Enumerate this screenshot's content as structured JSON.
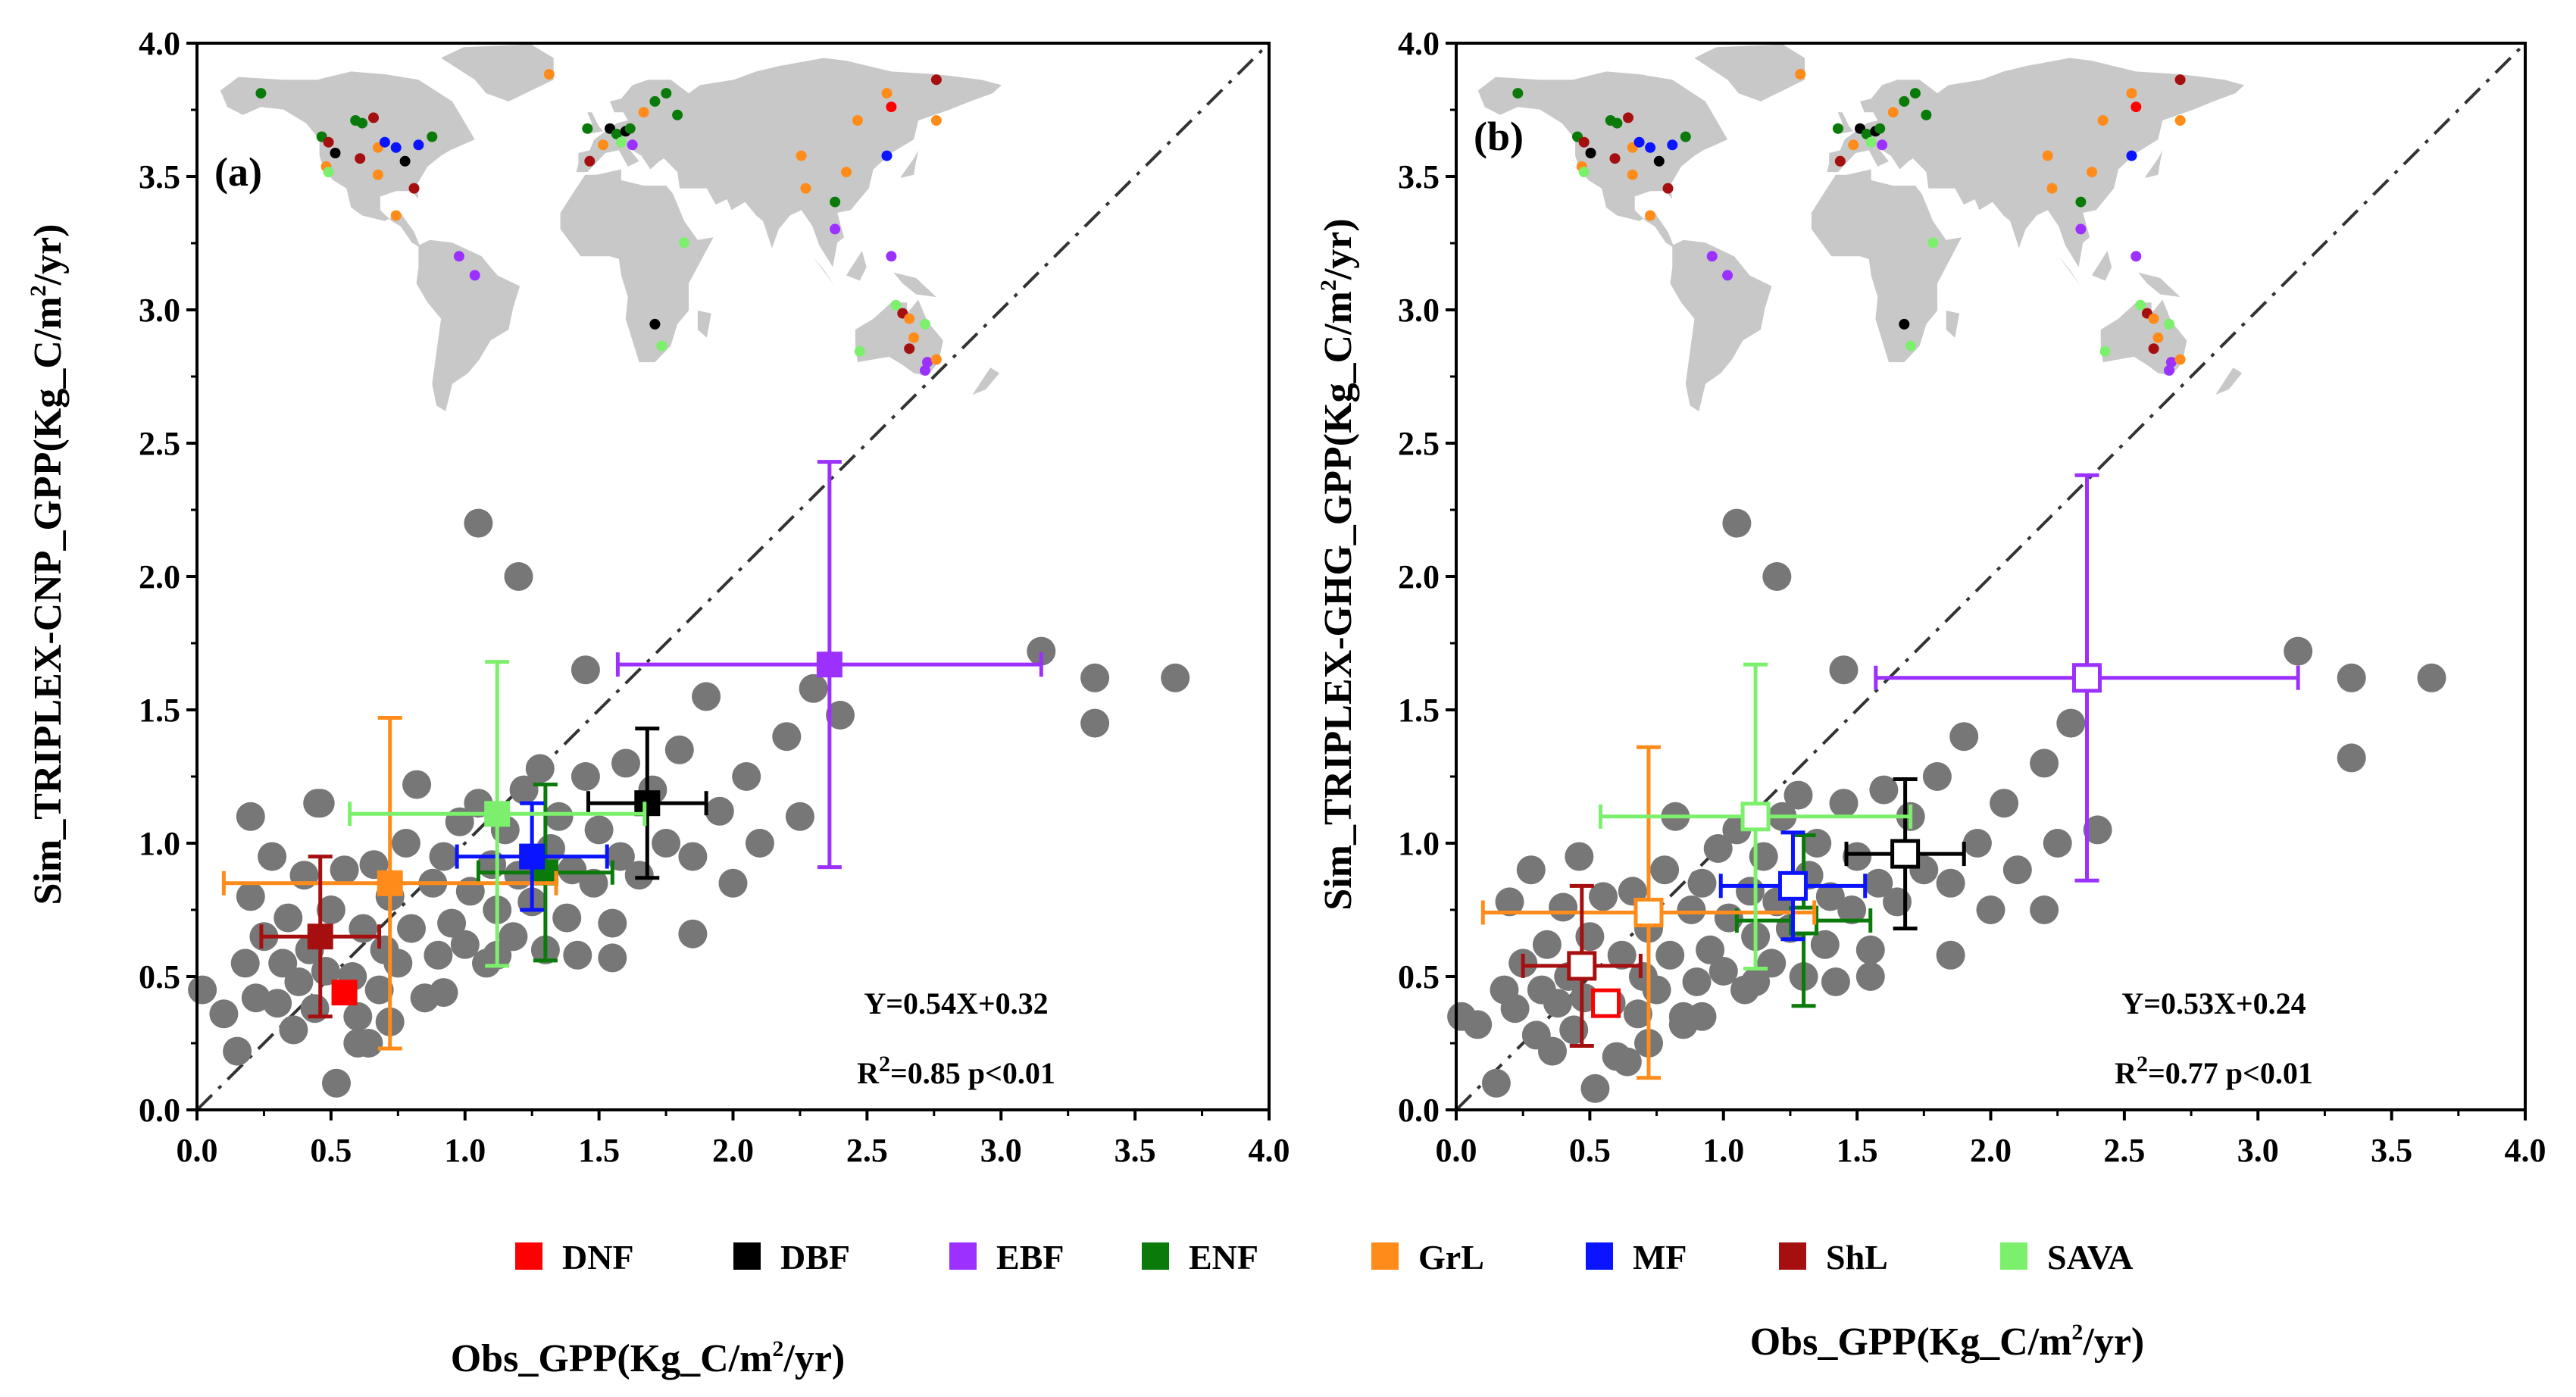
{
  "legend": [
    {
      "code": "DNF",
      "color": "#ff0000"
    },
    {
      "code": "DBF",
      "color": "#000000"
    },
    {
      "code": "EBF",
      "color": "#9b30ff"
    },
    {
      "code": "ENF",
      "color": "#0a7a0a"
    },
    {
      "code": "GrL",
      "color": "#ff8c1a"
    },
    {
      "code": "MF",
      "color": "#0a14ff"
    },
    {
      "code": "ShL",
      "color": "#a50f0f"
    },
    {
      "code": "SAVA",
      "color": "#7cf06c"
    }
  ],
  "x_label": {
    "pre": "Obs_GPP(Kg_C/m",
    "sup": "2",
    "post": "/yr)"
  },
  "chart_data": [
    {
      "type": "scatter",
      "panel_label": "(a)",
      "ylabel": {
        "pre": "Sim_TRIPLEX-CNP_GPP(Kg_C/m",
        "sup": "2",
        "post": "/yr)"
      },
      "xlim": [
        0,
        4
      ],
      "ylim": [
        0,
        4
      ],
      "xticks": [
        "0.0",
        "0.5",
        "1.0",
        "1.5",
        "2.0",
        "2.5",
        "3.0",
        "3.5",
        "4.0"
      ],
      "yticks": [
        "0.0",
        "0.5",
        "1.0",
        "1.5",
        "2.0",
        "2.5",
        "3.0",
        "3.5",
        "4.0"
      ],
      "reference_line": "1:1",
      "equation": "Y=0.54X+0.32",
      "r2": {
        "pre": "R",
        "sup": "2",
        "post": "=0.85  p<0.01"
      },
      "marker_style": "filled",
      "points": [
        [
          0.02,
          0.45
        ],
        [
          0.1,
          0.36
        ],
        [
          0.15,
          0.22
        ],
        [
          0.18,
          0.55
        ],
        [
          0.2,
          0.8
        ],
        [
          0.22,
          0.42
        ],
        [
          0.25,
          0.65
        ],
        [
          0.28,
          0.95
        ],
        [
          0.3,
          0.4
        ],
        [
          0.32,
          0.55
        ],
        [
          0.34,
          0.72
        ],
        [
          0.36,
          0.3
        ],
        [
          0.38,
          0.48
        ],
        [
          0.4,
          0.88
        ],
        [
          0.42,
          0.6
        ],
        [
          0.44,
          0.38
        ],
        [
          0.46,
          1.15
        ],
        [
          0.48,
          0.52
        ],
        [
          0.5,
          0.75
        ],
        [
          0.52,
          0.1
        ],
        [
          0.55,
          0.9
        ],
        [
          0.58,
          0.5
        ],
        [
          0.6,
          0.35
        ],
        [
          0.62,
          0.68
        ],
        [
          0.64,
          0.25
        ],
        [
          0.66,
          0.92
        ],
        [
          0.68,
          0.45
        ],
        [
          0.7,
          0.6
        ],
        [
          0.72,
          0.8
        ],
        [
          0.75,
          0.55
        ],
        [
          0.78,
          1.0
        ],
        [
          0.8,
          0.68
        ],
        [
          0.82,
          1.22
        ],
        [
          0.85,
          0.42
        ],
        [
          0.88,
          0.85
        ],
        [
          0.9,
          0.58
        ],
        [
          0.92,
          0.95
        ],
        [
          0.95,
          0.7
        ],
        [
          0.98,
          1.08
        ],
        [
          1.0,
          0.62
        ],
        [
          1.02,
          0.82
        ],
        [
          1.05,
          1.15
        ],
        [
          1.08,
          0.55
        ],
        [
          1.1,
          0.92
        ],
        [
          1.12,
          0.75
        ],
        [
          1.15,
          1.05
        ],
        [
          1.18,
          0.65
        ],
        [
          1.2,
          0.88
        ],
        [
          1.22,
          1.2
        ],
        [
          1.25,
          0.78
        ],
        [
          1.28,
          1.28
        ],
        [
          1.3,
          0.6
        ],
        [
          1.32,
          0.98
        ],
        [
          1.35,
          1.1
        ],
        [
          1.38,
          0.72
        ],
        [
          1.4,
          0.9
        ],
        [
          1.42,
          0.58
        ],
        [
          1.45,
          1.25
        ],
        [
          1.48,
          0.85
        ],
        [
          1.5,
          1.05
        ],
        [
          1.55,
          0.7
        ],
        [
          1.58,
          0.95
        ],
        [
          1.6,
          1.3
        ],
        [
          1.65,
          0.88
        ],
        [
          1.7,
          1.2
        ],
        [
          1.75,
          1.0
        ],
        [
          1.8,
          1.35
        ],
        [
          1.85,
          0.95
        ],
        [
          1.9,
          1.55
        ],
        [
          1.95,
          1.12
        ],
        [
          2.0,
          0.85
        ],
        [
          2.05,
          1.25
        ],
        [
          2.1,
          1.0
        ],
        [
          2.2,
          1.4
        ],
        [
          2.25,
          1.1
        ],
        [
          2.3,
          1.58
        ],
        [
          2.4,
          1.48
        ],
        [
          1.45,
          1.65
        ],
        [
          1.05,
          2.2
        ],
        [
          1.2,
          2.0
        ],
        [
          0.2,
          1.1
        ],
        [
          0.45,
          1.15
        ],
        [
          3.15,
          1.72
        ],
        [
          3.35,
          1.62
        ],
        [
          3.35,
          1.45
        ],
        [
          3.65,
          1.62
        ],
        [
          0.85,
          0.42
        ],
        [
          1.12,
          0.58
        ],
        [
          0.6,
          0.25
        ],
        [
          0.72,
          0.33
        ],
        [
          0.92,
          0.44
        ],
        [
          1.55,
          0.57
        ],
        [
          1.85,
          0.66
        ]
      ],
      "groups": [
        {
          "code": "DNF",
          "x": 0.55,
          "y": 0.44,
          "xerr": 0.0,
          "yerr": 0.0
        },
        {
          "code": "DBF",
          "x": 1.68,
          "y": 1.15,
          "xerr": 0.22,
          "yerr": 0.28
        },
        {
          "code": "EBF",
          "x": 2.36,
          "y": 1.67,
          "xerr": 0.79,
          "yerr": 0.76
        },
        {
          "code": "ENF",
          "x": 1.3,
          "y": 0.89,
          "xerr": 0.25,
          "yerr": 0.33
        },
        {
          "code": "GrL",
          "x": 0.72,
          "y": 0.85,
          "xerr": 0.62,
          "yerr": 0.62
        },
        {
          "code": "MF",
          "x": 1.25,
          "y": 0.95,
          "xerr": 0.28,
          "yerr": 0.2
        },
        {
          "code": "ShL",
          "x": 0.46,
          "y": 0.65,
          "xerr": 0.22,
          "yerr": 0.3
        },
        {
          "code": "SAVA",
          "x": 1.12,
          "y": 1.11,
          "xerr": 0.55,
          "yerr": 0.57
        }
      ]
    },
    {
      "type": "scatter",
      "panel_label": "(b)",
      "ylabel": {
        "pre": "Sim_TRIPLEX-GHG_GPP(Kg_C/m",
        "sup": "2",
        "post": "/yr)"
      },
      "xlim": [
        0,
        4
      ],
      "ylim": [
        0,
        4
      ],
      "xticks": [
        "0.0",
        "0.5",
        "1.0",
        "1.5",
        "2.0",
        "2.5",
        "3.0",
        "3.5",
        "4.0"
      ],
      "yticks": [
        "0.0",
        "0.5",
        "1.0",
        "1.5",
        "2.0",
        "2.5",
        "3.0",
        "3.5",
        "4.0"
      ],
      "reference_line": "1:1",
      "equation": "Y=0.53X+0.24",
      "r2": {
        "pre": "R",
        "sup": "2",
        "post": "=0.77   p<0.01"
      },
      "marker_style": "open",
      "points": [
        [
          0.02,
          0.35
        ],
        [
          0.08,
          0.32
        ],
        [
          0.15,
          0.1
        ],
        [
          0.18,
          0.45
        ],
        [
          0.2,
          0.78
        ],
        [
          0.22,
          0.38
        ],
        [
          0.25,
          0.55
        ],
        [
          0.28,
          0.9
        ],
        [
          0.3,
          0.28
        ],
        [
          0.32,
          0.45
        ],
        [
          0.34,
          0.62
        ],
        [
          0.36,
          0.22
        ],
        [
          0.38,
          0.4
        ],
        [
          0.4,
          0.76
        ],
        [
          0.42,
          0.5
        ],
        [
          0.44,
          0.3
        ],
        [
          0.46,
          0.95
        ],
        [
          0.48,
          0.42
        ],
        [
          0.5,
          0.65
        ],
        [
          0.52,
          0.08
        ],
        [
          0.55,
          0.8
        ],
        [
          0.58,
          0.4
        ],
        [
          0.6,
          0.2
        ],
        [
          0.62,
          0.58
        ],
        [
          0.64,
          0.18
        ],
        [
          0.66,
          0.82
        ],
        [
          0.68,
          0.36
        ],
        [
          0.7,
          0.5
        ],
        [
          0.72,
          0.68
        ],
        [
          0.75,
          0.45
        ],
        [
          0.78,
          0.9
        ],
        [
          0.8,
          0.58
        ],
        [
          0.82,
          1.1
        ],
        [
          0.85,
          0.35
        ],
        [
          0.88,
          0.75
        ],
        [
          0.9,
          0.48
        ],
        [
          0.92,
          0.85
        ],
        [
          0.95,
          0.6
        ],
        [
          0.98,
          0.98
        ],
        [
          1.0,
          0.52
        ],
        [
          1.02,
          0.72
        ],
        [
          1.05,
          1.05
        ],
        [
          1.08,
          0.45
        ],
        [
          1.1,
          0.82
        ],
        [
          1.12,
          0.65
        ],
        [
          1.15,
          0.95
        ],
        [
          1.18,
          0.55
        ],
        [
          1.2,
          0.78
        ],
        [
          1.22,
          1.1
        ],
        [
          1.25,
          0.68
        ],
        [
          1.28,
          1.18
        ],
        [
          1.3,
          0.5
        ],
        [
          1.32,
          0.88
        ],
        [
          1.35,
          1.0
        ],
        [
          1.38,
          0.62
        ],
        [
          1.4,
          0.8
        ],
        [
          1.42,
          0.48
        ],
        [
          1.45,
          1.15
        ],
        [
          1.48,
          0.75
        ],
        [
          1.5,
          0.95
        ],
        [
          1.55,
          0.6
        ],
        [
          1.58,
          0.85
        ],
        [
          1.6,
          1.2
        ],
        [
          1.65,
          0.78
        ],
        [
          1.7,
          1.1
        ],
        [
          1.75,
          0.9
        ],
        [
          1.8,
          1.25
        ],
        [
          1.85,
          0.85
        ],
        [
          1.9,
          1.4
        ],
        [
          1.95,
          1.0
        ],
        [
          2.0,
          0.75
        ],
        [
          2.05,
          1.15
        ],
        [
          2.1,
          0.9
        ],
        [
          2.2,
          1.3
        ],
        [
          2.25,
          1.0
        ],
        [
          2.3,
          1.45
        ],
        [
          2.4,
          1.05
        ],
        [
          1.45,
          1.65
        ],
        [
          1.05,
          2.2
        ],
        [
          1.2,
          2.0
        ],
        [
          3.15,
          1.72
        ],
        [
          3.35,
          1.62
        ],
        [
          3.35,
          1.32
        ],
        [
          3.65,
          1.62
        ],
        [
          0.85,
          0.32
        ],
        [
          1.12,
          0.48
        ],
        [
          0.72,
          0.25
        ],
        [
          0.92,
          0.35
        ],
        [
          1.55,
          0.5
        ],
        [
          1.85,
          0.58
        ],
        [
          2.2,
          0.75
        ]
      ],
      "groups": [
        {
          "code": "DNF",
          "x": 0.56,
          "y": 0.4,
          "xerr": 0.0,
          "yerr": 0.0
        },
        {
          "code": "DBF",
          "x": 1.68,
          "y": 0.96,
          "xerr": 0.22,
          "yerr": 0.28
        },
        {
          "code": "EBF",
          "x": 2.36,
          "y": 1.62,
          "xerr": 0.79,
          "yerr": 0.76
        },
        {
          "code": "ENF",
          "x": 1.3,
          "y": 0.71,
          "xerr": 0.25,
          "yerr": 0.32
        },
        {
          "code": "GrL",
          "x": 0.72,
          "y": 0.74,
          "xerr": 0.62,
          "yerr": 0.62
        },
        {
          "code": "MF",
          "x": 1.26,
          "y": 0.84,
          "xerr": 0.27,
          "yerr": 0.2
        },
        {
          "code": "ShL",
          "x": 0.47,
          "y": 0.54,
          "xerr": 0.22,
          "yerr": 0.3
        },
        {
          "code": "SAVA",
          "x": 1.12,
          "y": 1.1,
          "xerr": 0.58,
          "yerr": 0.57
        }
      ]
    }
  ],
  "map_sites": [
    {
      "code": "ENF",
      "lon": -150,
      "lat": 65
    },
    {
      "code": "ENF",
      "lon": -123,
      "lat": 49
    },
    {
      "code": "ShL",
      "lon": -120,
      "lat": 47
    },
    {
      "code": "GrL",
      "lon": -121,
      "lat": 38
    },
    {
      "code": "SAVA",
      "lon": -120,
      "lat": 36
    },
    {
      "code": "DBF",
      "lon": -117,
      "lat": 43
    },
    {
      "code": "ENF",
      "lon": -108,
      "lat": 55
    },
    {
      "code": "ENF",
      "lon": -105,
      "lat": 54
    },
    {
      "code": "ShL",
      "lon": -100,
      "lat": 56
    },
    {
      "code": "GrL",
      "lon": -98,
      "lat": 45
    },
    {
      "code": "MF",
      "lon": -95,
      "lat": 47
    },
    {
      "code": "MF",
      "lon": -90,
      "lat": 45
    },
    {
      "code": "DBF",
      "lon": -86,
      "lat": 40
    },
    {
      "code": "MF",
      "lon": -80,
      "lat": 46
    },
    {
      "code": "ENF",
      "lon": -74,
      "lat": 49
    },
    {
      "code": "ShL",
      "lon": -106,
      "lat": 41
    },
    {
      "code": "GrL",
      "lon": -98,
      "lat": 35
    },
    {
      "code": "ShL",
      "lon": -82,
      "lat": 30
    },
    {
      "code": "GrL",
      "lon": -90,
      "lat": 20
    },
    {
      "code": "EBF",
      "lon": -62,
      "lat": 5
    },
    {
      "code": "EBF",
      "lon": -55,
      "lat": -2
    },
    {
      "code": "GrL",
      "lon": -22,
      "lat": 72
    },
    {
      "code": "ENF",
      "lon": -5,
      "lat": 52
    },
    {
      "code": "DBF",
      "lon": 5,
      "lat": 52
    },
    {
      "code": "ENF",
      "lon": 8,
      "lat": 50
    },
    {
      "code": "SAVA",
      "lon": 10,
      "lat": 47
    },
    {
      "code": "DBF",
      "lon": 12,
      "lat": 51
    },
    {
      "code": "ENF",
      "lon": 14,
      "lat": 52
    },
    {
      "code": "EBF",
      "lon": 15,
      "lat": 46
    },
    {
      "code": "ShL",
      "lon": -4,
      "lat": 40
    },
    {
      "code": "GrL",
      "lon": 2,
      "lat": 46
    },
    {
      "code": "ENF",
      "lon": 25,
      "lat": 62
    },
    {
      "code": "ENF",
      "lon": 30,
      "lat": 65
    },
    {
      "code": "GrL",
      "lon": 20,
      "lat": 58
    },
    {
      "code": "ENF",
      "lon": 35,
      "lat": 57
    },
    {
      "code": "SAVA",
      "lon": 38,
      "lat": 10
    },
    {
      "code": "DBF",
      "lon": 25,
      "lat": -20
    },
    {
      "code": "SAVA",
      "lon": 28,
      "lat": -28
    },
    {
      "code": "GrL",
      "lon": 90,
      "lat": 42
    },
    {
      "code": "GrL",
      "lon": 92,
      "lat": 30
    },
    {
      "code": "GrL",
      "lon": 110,
      "lat": 36
    },
    {
      "code": "MF",
      "lon": 128,
      "lat": 42
    },
    {
      "code": "ENF",
      "lon": 105,
      "lat": 25
    },
    {
      "code": "EBF",
      "lon": 105,
      "lat": 15
    },
    {
      "code": "GrL",
      "lon": 115,
      "lat": 55
    },
    {
      "code": "GrL",
      "lon": 128,
      "lat": 65
    },
    {
      "code": "DNF",
      "lon": 130,
      "lat": 60
    },
    {
      "code": "ShL",
      "lon": 150,
      "lat": 70
    },
    {
      "code": "GrL",
      "lon": 150,
      "lat": 55
    },
    {
      "code": "EBF",
      "lon": 130,
      "lat": 5
    },
    {
      "code": "SAVA",
      "lon": 132,
      "lat": -13
    },
    {
      "code": "ShL",
      "lon": 135,
      "lat": -16
    },
    {
      "code": "GrL",
      "lon": 138,
      "lat": -18
    },
    {
      "code": "SAVA",
      "lon": 145,
      "lat": -20
    },
    {
      "code": "GrL",
      "lon": 140,
      "lat": -25
    },
    {
      "code": "EBF",
      "lon": 146,
      "lat": -34
    },
    {
      "code": "EBF",
      "lon": 145,
      "lat": -37
    },
    {
      "code": "SAVA",
      "lon": 116,
      "lat": -30
    },
    {
      "code": "ShL",
      "lon": 138,
      "lat": -29
    },
    {
      "code": "GrL",
      "lon": 150,
      "lat": -33
    }
  ]
}
